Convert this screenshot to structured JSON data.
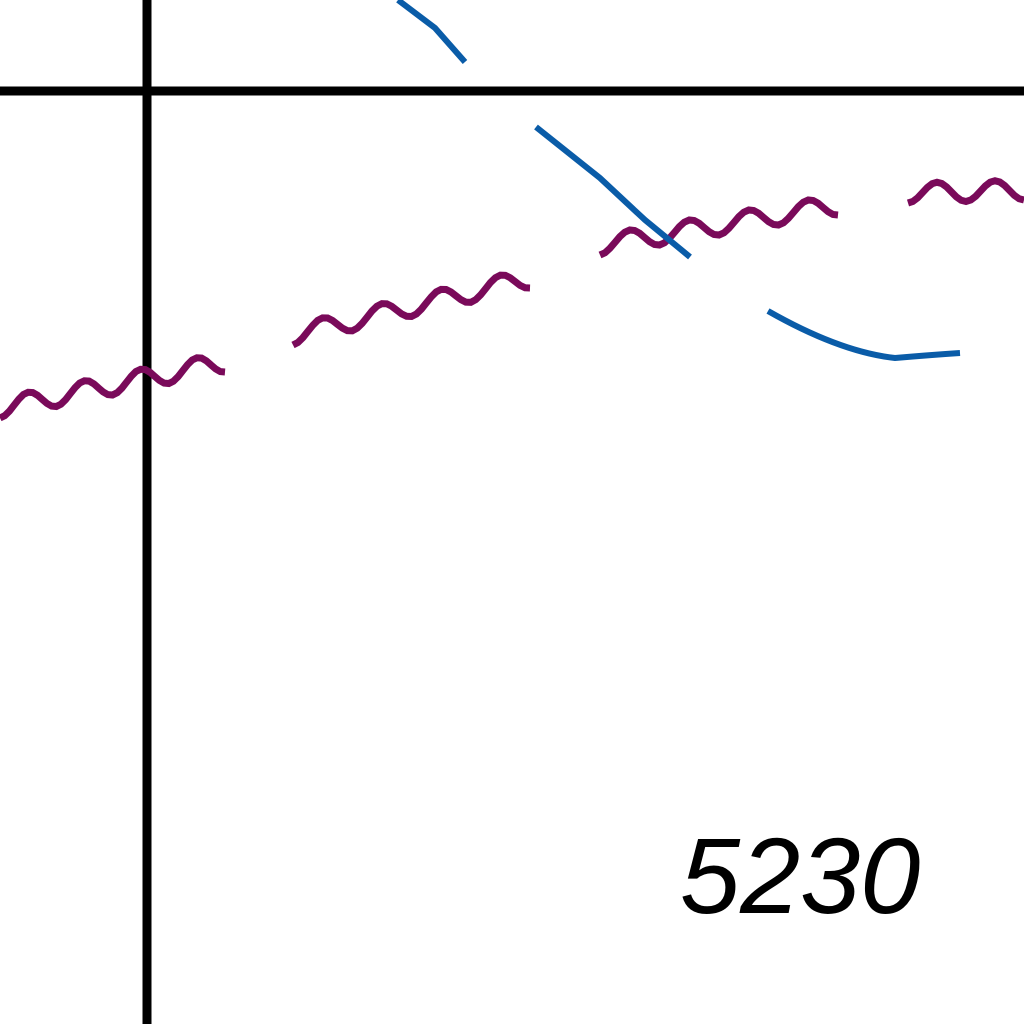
{
  "map": {
    "grid_label": "5230",
    "colors": {
      "background": "#ffffff",
      "grid": "#000000",
      "boundary": "#7a0a5a",
      "water": "#0a5ca8"
    },
    "features": {
      "grid_lines": "grid-line",
      "boundary": "wavy-boundary-line",
      "streams": "stream-line"
    }
  }
}
